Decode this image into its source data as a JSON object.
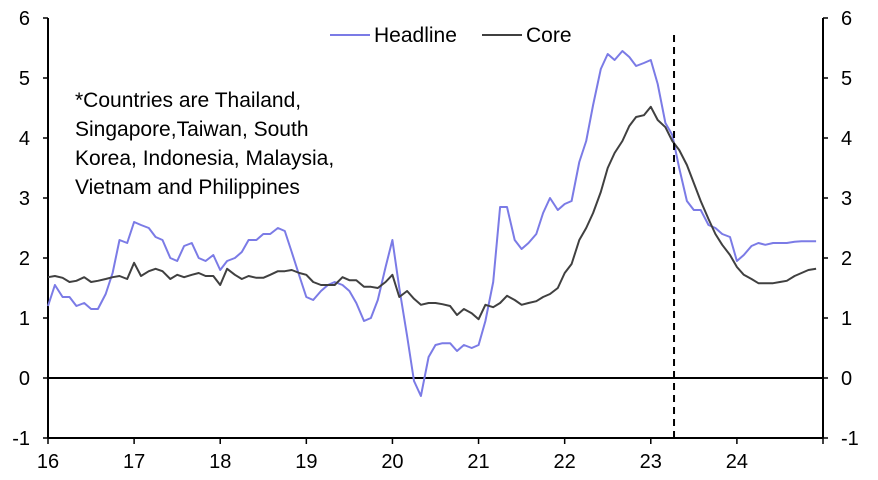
{
  "chart_data": {
    "type": "line",
    "x_tick_labels": [
      "16",
      "17",
      "18",
      "19",
      "20",
      "21",
      "22",
      "23",
      "24"
    ],
    "x_ticks": [
      2016,
      2017,
      2018,
      2019,
      2020,
      2021,
      2022,
      2023,
      2024
    ],
    "xlim": [
      2016,
      2025
    ],
    "y_tick_labels": [
      "-1",
      "0",
      "1",
      "2",
      "3",
      "4",
      "5",
      "6"
    ],
    "ylim": [
      -1,
      6
    ],
    "right_axis_ticks": [
      "-1",
      "0",
      "1",
      "2",
      "3",
      "4",
      "5",
      "6"
    ],
    "legend_position": "top-center",
    "annotation": {
      "lines": [
        "*Countries are Thailand,",
        "Singapore,Taiwan, South",
        "Korea, Indonesia, Malaysia,",
        "Vietnam and Philippines"
      ]
    },
    "forecast_line_x": 2023.27,
    "zero_line": true,
    "grid": false,
    "series": [
      {
        "name": "Headline",
        "color": "#7b7be6",
        "x": [
          2016.0,
          2016.08,
          2016.17,
          2016.25,
          2016.33,
          2016.42,
          2016.5,
          2016.58,
          2016.67,
          2016.75,
          2016.83,
          2016.92,
          2017.0,
          2017.08,
          2017.17,
          2017.25,
          2017.33,
          2017.42,
          2017.5,
          2017.58,
          2017.67,
          2017.75,
          2017.83,
          2017.92,
          2018.0,
          2018.08,
          2018.17,
          2018.25,
          2018.33,
          2018.42,
          2018.5,
          2018.58,
          2018.67,
          2018.75,
          2018.83,
          2018.92,
          2019.0,
          2019.08,
          2019.17,
          2019.25,
          2019.33,
          2019.42,
          2019.5,
          2019.58,
          2019.67,
          2019.75,
          2019.83,
          2019.92,
          2020.0,
          2020.08,
          2020.17,
          2020.25,
          2020.33,
          2020.42,
          2020.5,
          2020.58,
          2020.67,
          2020.75,
          2020.83,
          2020.92,
          2021.0,
          2021.08,
          2021.17,
          2021.25,
          2021.33,
          2021.42,
          2021.5,
          2021.58,
          2021.67,
          2021.75,
          2021.83,
          2021.92,
          2022.0,
          2022.08,
          2022.17,
          2022.25,
          2022.33,
          2022.42,
          2022.5,
          2022.58,
          2022.67,
          2022.75,
          2022.83,
          2022.92,
          2023.0,
          2023.08,
          2023.17,
          2023.25,
          2023.33,
          2023.42,
          2023.5,
          2023.58,
          2023.67,
          2023.75,
          2023.83,
          2023.92,
          2024.0,
          2024.08,
          2024.17,
          2024.25,
          2024.33,
          2024.42,
          2024.5,
          2024.58,
          2024.67,
          2024.75,
          2024.83,
          2024.92
        ],
        "values": [
          1.2,
          1.55,
          1.35,
          1.35,
          1.2,
          1.25,
          1.15,
          1.15,
          1.4,
          1.75,
          2.3,
          2.25,
          2.6,
          2.55,
          2.5,
          2.35,
          2.3,
          2.0,
          1.95,
          2.2,
          2.25,
          2.0,
          1.95,
          2.05,
          1.8,
          1.95,
          2.0,
          2.1,
          2.3,
          2.3,
          2.4,
          2.4,
          2.5,
          2.45,
          2.1,
          1.7,
          1.35,
          1.3,
          1.45,
          1.55,
          1.6,
          1.55,
          1.45,
          1.25,
          0.95,
          1.0,
          1.3,
          1.85,
          2.3,
          1.5,
          0.7,
          -0.05,
          -0.3,
          0.35,
          0.55,
          0.58,
          0.58,
          0.45,
          0.55,
          0.5,
          0.55,
          0.95,
          1.6,
          2.85,
          2.85,
          2.3,
          2.15,
          2.25,
          2.4,
          2.75,
          3.0,
          2.8,
          2.9,
          2.95,
          3.6,
          3.95,
          4.55,
          5.15,
          5.4,
          5.3,
          5.45,
          5.35,
          5.2,
          5.25,
          5.3,
          4.9,
          4.25,
          4.05,
          3.5,
          2.95,
          2.8,
          2.8,
          2.55,
          2.5,
          2.4,
          2.35,
          1.95,
          2.05,
          2.2,
          2.25,
          2.22,
          2.25,
          2.25,
          2.25,
          2.27,
          2.28,
          2.28,
          2.28
        ]
      },
      {
        "name": "Core",
        "color": "#404040",
        "x": [
          2016.0,
          2016.08,
          2016.17,
          2016.25,
          2016.33,
          2016.42,
          2016.5,
          2016.58,
          2016.67,
          2016.75,
          2016.83,
          2016.92,
          2017.0,
          2017.08,
          2017.17,
          2017.25,
          2017.33,
          2017.42,
          2017.5,
          2017.58,
          2017.67,
          2017.75,
          2017.83,
          2017.92,
          2018.0,
          2018.08,
          2018.17,
          2018.25,
          2018.33,
          2018.42,
          2018.5,
          2018.58,
          2018.67,
          2018.75,
          2018.83,
          2018.92,
          2019.0,
          2019.08,
          2019.17,
          2019.25,
          2019.33,
          2019.42,
          2019.5,
          2019.58,
          2019.67,
          2019.75,
          2019.83,
          2019.92,
          2020.0,
          2020.08,
          2020.17,
          2020.25,
          2020.33,
          2020.42,
          2020.5,
          2020.58,
          2020.67,
          2020.75,
          2020.83,
          2020.92,
          2021.0,
          2021.08,
          2021.17,
          2021.25,
          2021.33,
          2021.42,
          2021.5,
          2021.58,
          2021.67,
          2021.75,
          2021.83,
          2021.92,
          2022.0,
          2022.08,
          2022.17,
          2022.25,
          2022.33,
          2022.42,
          2022.5,
          2022.58,
          2022.67,
          2022.75,
          2022.83,
          2022.92,
          2023.0,
          2023.08,
          2023.17,
          2023.25,
          2023.33,
          2023.42,
          2023.5,
          2023.58,
          2023.67,
          2023.75,
          2023.83,
          2023.92,
          2024.0,
          2024.08,
          2024.17,
          2024.25,
          2024.33,
          2024.42,
          2024.5,
          2024.58,
          2024.67,
          2024.75,
          2024.83,
          2024.92
        ],
        "values": [
          1.68,
          1.7,
          1.67,
          1.6,
          1.62,
          1.68,
          1.6,
          1.62,
          1.65,
          1.68,
          1.7,
          1.65,
          1.92,
          1.7,
          1.78,
          1.82,
          1.78,
          1.65,
          1.72,
          1.68,
          1.72,
          1.75,
          1.7,
          1.7,
          1.55,
          1.82,
          1.72,
          1.65,
          1.7,
          1.67,
          1.67,
          1.72,
          1.78,
          1.78,
          1.8,
          1.75,
          1.72,
          1.6,
          1.55,
          1.55,
          1.55,
          1.68,
          1.63,
          1.63,
          1.52,
          1.52,
          1.5,
          1.6,
          1.72,
          1.35,
          1.45,
          1.32,
          1.22,
          1.25,
          1.25,
          1.23,
          1.2,
          1.05,
          1.15,
          1.08,
          0.98,
          1.22,
          1.18,
          1.25,
          1.37,
          1.3,
          1.22,
          1.25,
          1.28,
          1.35,
          1.4,
          1.5,
          1.75,
          1.9,
          2.3,
          2.5,
          2.75,
          3.1,
          3.5,
          3.75,
          3.95,
          4.2,
          4.35,
          4.38,
          4.52,
          4.3,
          4.18,
          3.95,
          3.8,
          3.55,
          3.25,
          2.95,
          2.65,
          2.4,
          2.22,
          2.05,
          1.85,
          1.72,
          1.65,
          1.58,
          1.58,
          1.58,
          1.6,
          1.62,
          1.7,
          1.75,
          1.8,
          1.82
        ]
      }
    ]
  }
}
